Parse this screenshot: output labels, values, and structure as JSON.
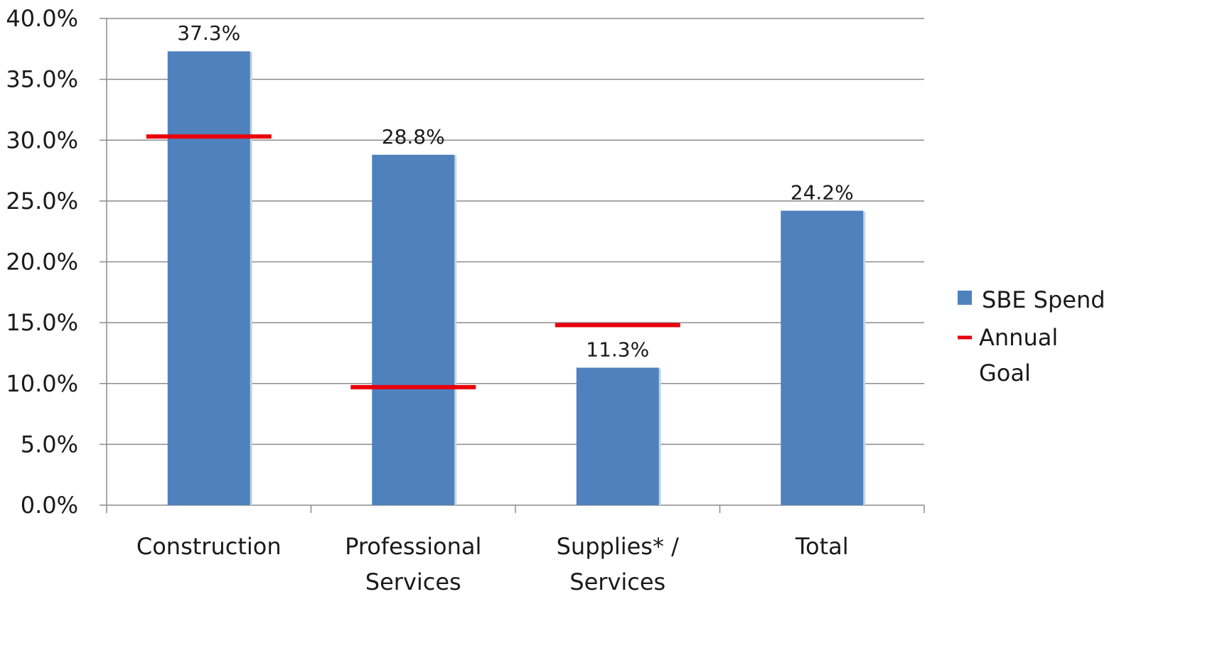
{
  "chart_data": {
    "type": "bar",
    "categories": [
      [
        "Construction"
      ],
      [
        "Professional",
        "Services"
      ],
      [
        "Supplies* /",
        "Services"
      ],
      [
        "Total"
      ]
    ],
    "series": [
      {
        "name": "SBE Spend",
        "type": "bar",
        "values": [
          37.3,
          28.8,
          11.3,
          24.2
        ],
        "labels": [
          "37.3%",
          "28.8%",
          "11.3%",
          "24.2%"
        ],
        "color": "#4F81BD"
      },
      {
        "name": "Annual Goal",
        "type": "marker-line",
        "values": [
          30.3,
          9.7,
          14.8,
          null
        ],
        "color": "#E8000B"
      }
    ],
    "legend": {
      "position": "right",
      "items": [
        {
          "label": "SBE Spend",
          "lines": [
            "SBE Spend"
          ]
        },
        {
          "label": "Annual Goal",
          "lines": [
            "Annual",
            "Goal"
          ]
        }
      ]
    },
    "ylim": [
      0,
      40
    ],
    "yticks": [
      0,
      5,
      10,
      15,
      20,
      25,
      30,
      35,
      40
    ],
    "ytick_labels": [
      "0.0%",
      "5.0%",
      "10.0%",
      "15.0%",
      "20.0%",
      "25.0%",
      "30.0%",
      "35.0%",
      "40.0%"
    ],
    "grid": true,
    "title": "",
    "xlabel": "",
    "ylabel": ""
  }
}
